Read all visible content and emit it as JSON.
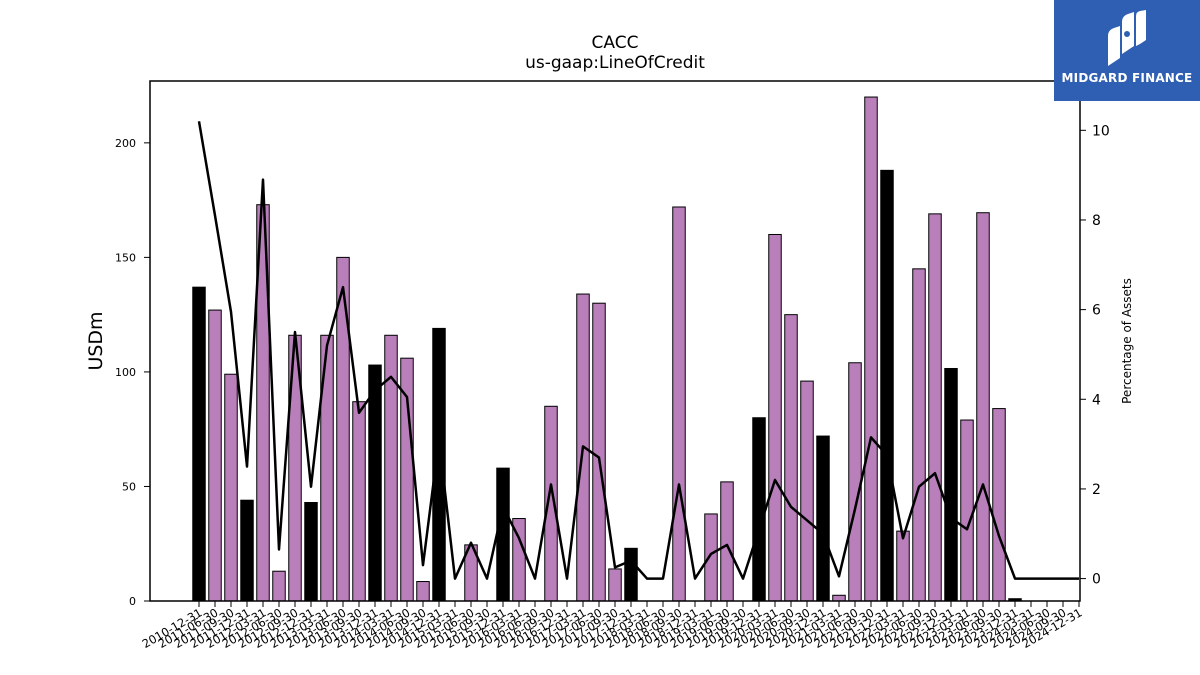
{
  "brand": {
    "name": "MIDGARD FINANCE",
    "bg_color": "#2f5fb3"
  },
  "chart_data": {
    "type": "bar",
    "title": "CACC",
    "subtitle": "us-gaap:LineOfCredit",
    "ylabel": "USDm",
    "y2label": "Percentage of Assets",
    "ylim": [
      0,
      227
    ],
    "y2lim": [
      -0.5,
      11.1
    ],
    "yticks": [
      0,
      50,
      100,
      150,
      200
    ],
    "y2ticks": [
      0,
      2,
      4,
      6,
      8,
      10
    ],
    "colors": {
      "annual": "#000000",
      "quarterly": "#b87fba",
      "line": "#000000"
    },
    "categories": [
      "2010-12-31",
      "2011-06-30",
      "2011-09-30",
      "2011-12-31",
      "2012-03-31",
      "2012-06-30",
      "2012-09-30",
      "2012-12-31",
      "2013-03-31",
      "2013-06-30",
      "2013-09-30",
      "2013-12-31",
      "2014-03-31",
      "2014-06-30",
      "2014-09-30",
      "2014-12-31",
      "2015-03-31",
      "2015-06-30",
      "2015-09-30",
      "2015-12-31",
      "2016-03-31",
      "2016-06-30",
      "2016-09-30",
      "2016-12-31",
      "2017-03-31",
      "2017-06-30",
      "2017-09-30",
      "2017-12-31",
      "2018-03-31",
      "2018-06-30",
      "2018-09-30",
      "2018-12-31",
      "2019-03-31",
      "2019-06-30",
      "2019-09-30",
      "2019-12-31",
      "2020-03-31",
      "2020-06-30",
      "2020-09-30",
      "2020-12-31",
      "2021-03-31",
      "2021-06-30",
      "2021-09-30",
      "2021-12-31",
      "2022-03-31",
      "2022-06-30",
      "2022-09-30",
      "2022-12-31",
      "2023-03-31",
      "2023-06-30",
      "2023-09-30",
      "2023-12-31",
      "2024-03-31",
      "2024-06-30",
      "2024-09-30",
      "2024-12-31"
    ],
    "series": [
      {
        "kind": "bar",
        "values": [
          137,
          127,
          99,
          44,
          173,
          13,
          116,
          43,
          116,
          150,
          87,
          103,
          116,
          106,
          8.5,
          119,
          0,
          24.5,
          0,
          58,
          36,
          0,
          85,
          0,
          134,
          130,
          14,
          23,
          0,
          0,
          172,
          0,
          38,
          52,
          0,
          80,
          160,
          125,
          96,
          72,
          2.5,
          104,
          220,
          188,
          30.5,
          145,
          169,
          101.5,
          79,
          169.5,
          84,
          1,
          0,
          0,
          0,
          0
        ],
        "annual": [
          true,
          false,
          false,
          true,
          false,
          false,
          false,
          true,
          false,
          false,
          false,
          true,
          false,
          false,
          false,
          true,
          false,
          false,
          false,
          true,
          false,
          false,
          false,
          true,
          false,
          false,
          false,
          true,
          false,
          false,
          false,
          true,
          false,
          false,
          false,
          true,
          false,
          false,
          false,
          true,
          false,
          false,
          false,
          true,
          false,
          false,
          false,
          true,
          false,
          false,
          false,
          true,
          false,
          false,
          false,
          true
        ]
      },
      {
        "kind": "line",
        "axis": "right",
        "values": [
          10.2,
          8.1,
          5.95,
          2.5,
          8.9,
          0.65,
          5.5,
          2.05,
          5.2,
          6.5,
          3.7,
          4.2,
          4.5,
          4.05,
          0.3,
          3.1,
          0,
          0.8,
          0,
          1.6,
          0.9,
          0,
          2.1,
          0,
          2.95,
          2.7,
          0.25,
          0.4,
          0,
          0,
          2.1,
          0,
          0.55,
          0.75,
          0,
          1.1,
          2.2,
          1.6,
          1.3,
          1.0,
          0.05,
          1.55,
          3.15,
          2.75,
          0.9,
          2.05,
          2.35,
          1.35,
          1.1,
          2.1,
          0.95,
          0,
          0,
          0,
          0,
          0
        ]
      }
    ]
  }
}
